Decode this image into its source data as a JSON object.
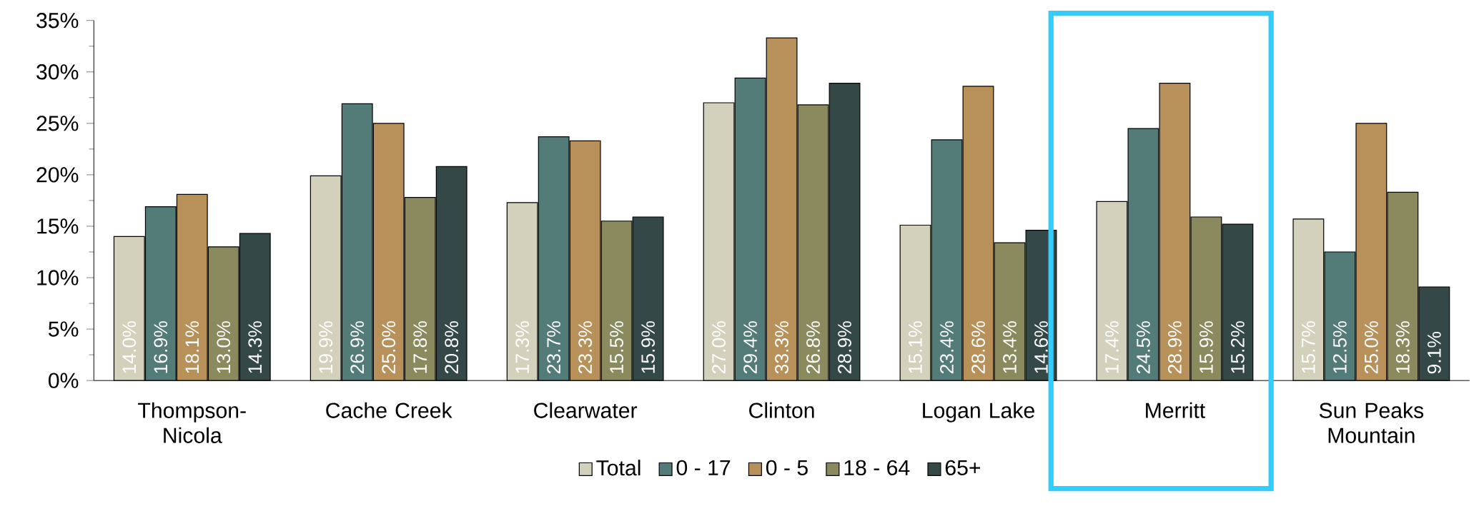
{
  "chart_data": {
    "type": "bar",
    "categories": [
      "Thompson-Nicola",
      "Cache Creek",
      "Clearwater",
      "Clinton",
      "Logan Lake",
      "Merritt",
      "Sun Peaks Mountain"
    ],
    "series": [
      {
        "name": "Total",
        "color": "#d3d0bb",
        "values": [
          14.0,
          19.9,
          17.3,
          27.0,
          15.1,
          17.4,
          15.7
        ],
        "value_labels": [
          "14.0%",
          "19.9%",
          "17.3%",
          "27.0%",
          "15.1%",
          "17.4%",
          "15.7%"
        ]
      },
      {
        "name": "0 - 17",
        "color": "#537b78",
        "values": [
          16.9,
          26.9,
          23.7,
          29.4,
          23.4,
          24.5,
          12.5
        ],
        "value_labels": [
          "16.9%",
          "26.9%",
          "23.7%",
          "29.4%",
          "23.4%",
          "24.5%",
          "12.5%"
        ]
      },
      {
        "name": "0 - 5",
        "color": "#b8915a",
        "values": [
          18.1,
          25.0,
          23.3,
          33.3,
          28.6,
          28.9,
          25.0
        ],
        "value_labels": [
          "18.1%",
          "25.0%",
          "23.3%",
          "33.3%",
          "28.6%",
          "28.9%",
          "25.0%"
        ]
      },
      {
        "name": "18 - 64",
        "color": "#8a8a5e",
        "values": [
          13.0,
          17.8,
          15.5,
          26.8,
          13.4,
          15.9,
          18.3
        ],
        "value_labels": [
          "13.0%",
          "17.8%",
          "15.5%",
          "26.8%",
          "13.4%",
          "15.9%",
          "18.3%"
        ]
      },
      {
        "name": "65+",
        "color": "#354848",
        "values": [
          14.3,
          20.8,
          15.9,
          28.9,
          14.6,
          15.2,
          9.1
        ],
        "value_labels": [
          "14.3%",
          "20.8%",
          "15.9%",
          "28.9%",
          "14.6%",
          "15.2%",
          "9.1%"
        ]
      }
    ],
    "ylim": [
      0,
      35
    ],
    "yticks": [
      {
        "value": 0,
        "label": "0%"
      },
      {
        "value": 5,
        "label": "5%"
      },
      {
        "value": 10,
        "label": "10%"
      },
      {
        "value": 15,
        "label": "15%"
      },
      {
        "value": 20,
        "label": "20%"
      },
      {
        "value": 25,
        "label": "25%"
      },
      {
        "value": 30,
        "label": "30%"
      },
      {
        "value": 35,
        "label": "35%"
      }
    ],
    "legend": "bottom",
    "grid": false
  }
}
